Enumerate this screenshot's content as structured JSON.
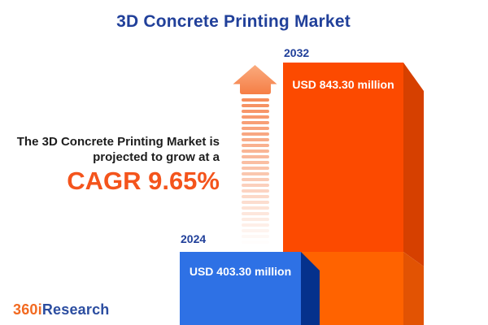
{
  "title": "3D Concrete Printing Market",
  "headline": {
    "line1": "The 3D Concrete Printing Market is",
    "line2": "projected to grow at a",
    "cagr": "CAGR 9.65%"
  },
  "logo": {
    "prefix": "360i",
    "suffix": "Research"
  },
  "bars": [
    {
      "year": "2024",
      "label": "USD 403.30 million"
    },
    {
      "year": "2032",
      "label": "USD 843.30 million"
    }
  ],
  "icons": {
    "growth_arrow": "up-arrow-icon"
  },
  "chart_data": {
    "type": "bar",
    "title": "3D Concrete Printing Market",
    "categories": [
      "2024",
      "2032"
    ],
    "values": [
      403.3,
      843.3
    ],
    "value_labels": [
      "USD 403.30 million",
      "USD 843.30 million"
    ],
    "unit": "USD million",
    "cagr_percent": 9.65,
    "annotation": "The 3D Concrete Printing Market is projected to grow at a CAGR 9.65%",
    "legend_position": "none",
    "grid": false,
    "style": "3d-infographic-bars",
    "colors": {
      "title_blue": "#21409A",
      "text_dark": "#1D1D1D",
      "accent_orange": "#F4541C",
      "bar_2024_face": "#2E71E5",
      "bar_2024_side": "#05318C",
      "bar_2032_face_upper": "#FC4A00",
      "bar_2032_face_lower": "#FF6300",
      "bar_2032_side_upper": "#D64000",
      "bar_2032_side_lower": "#E25303",
      "arrow_head_light": "#FAAB7E",
      "arrow_head_dark": "#F57B42",
      "arrow_stripe": "#F5834E",
      "logo_orange": "#F26A21",
      "logo_blue": "#2B4DA0",
      "background": "#FFFFFF"
    }
  }
}
